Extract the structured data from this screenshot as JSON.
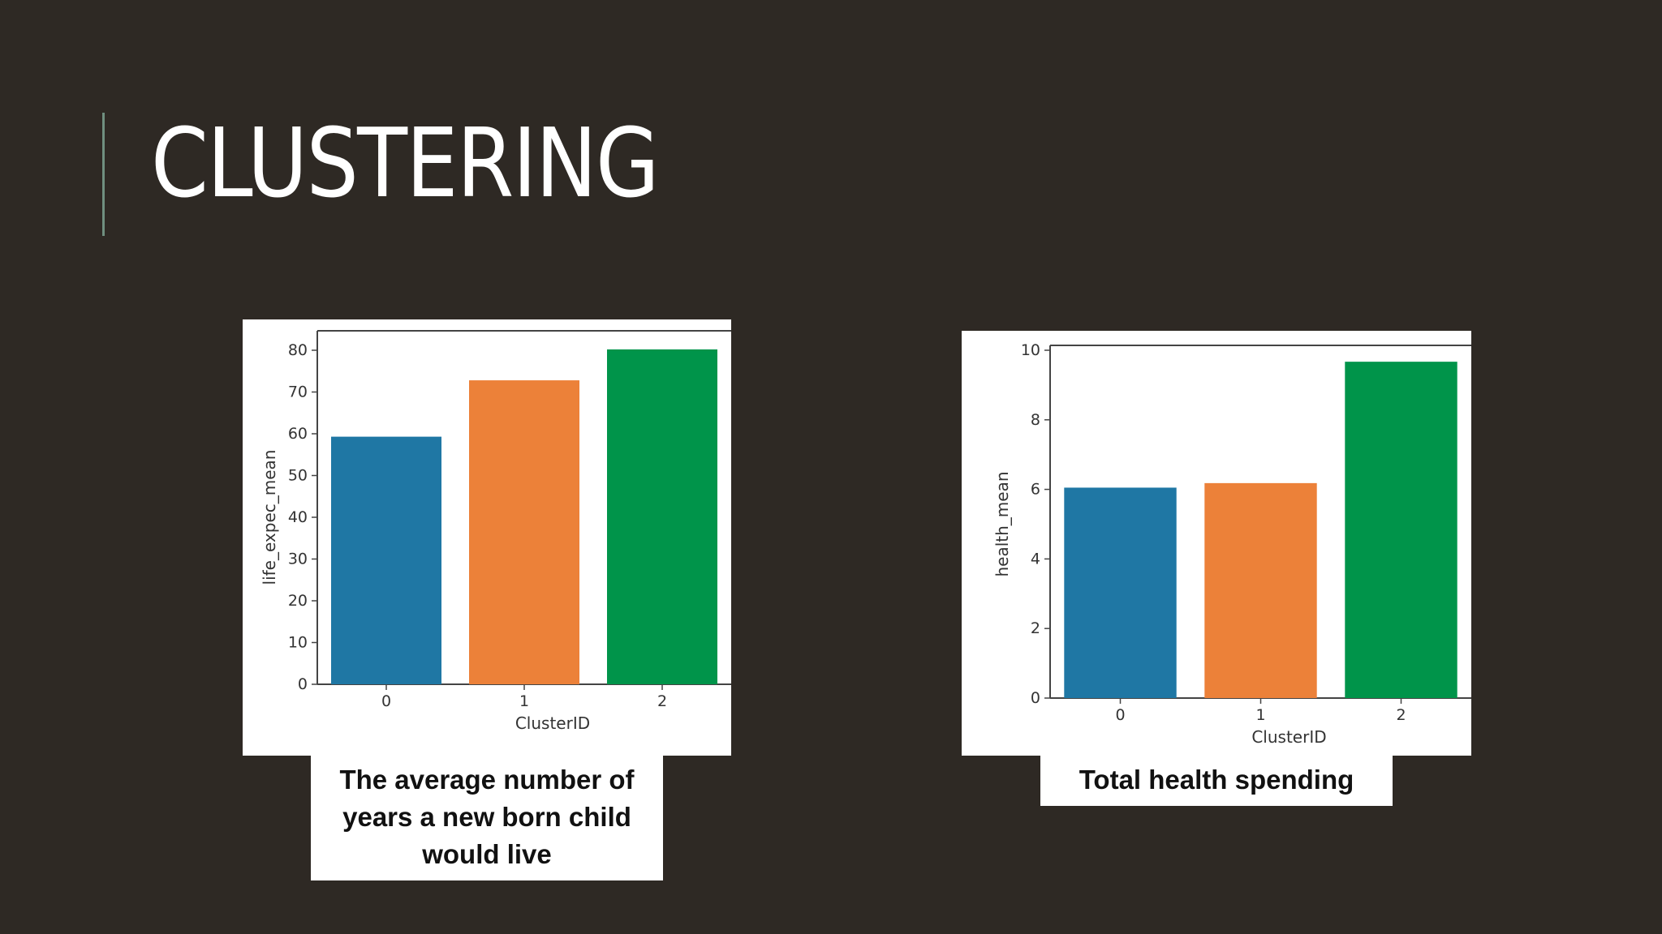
{
  "slide": {
    "title": "CLUSTERING",
    "background_color": "#2e2924",
    "accent_color": "#6f8f7f"
  },
  "captions": {
    "left": "The average number of years a new born child would live",
    "right": "Total health spending"
  },
  "chart_data": [
    {
      "type": "bar",
      "categories": [
        "0",
        "1",
        "2"
      ],
      "values": [
        59.3,
        72.8,
        80.2
      ],
      "colors": [
        "#1f77a4",
        "#ec8139",
        "#00944a"
      ],
      "title": "",
      "xlabel": "ClusterID",
      "ylabel": "life_expec_mean",
      "ylim": [
        0,
        80
      ],
      "yticks": [
        0,
        10,
        20,
        30,
        40,
        50,
        60,
        70,
        80
      ],
      "grid": false
    },
    {
      "type": "bar",
      "categories": [
        "0",
        "1",
        "2"
      ],
      "values": [
        6.05,
        6.18,
        9.67
      ],
      "colors": [
        "#1f77a4",
        "#ec8139",
        "#00944a"
      ],
      "title": "",
      "xlabel": "ClusterID",
      "ylabel": "health_mean",
      "ylim": [
        0,
        10
      ],
      "yticks": [
        0,
        2,
        4,
        6,
        8,
        10
      ],
      "grid": false
    }
  ]
}
